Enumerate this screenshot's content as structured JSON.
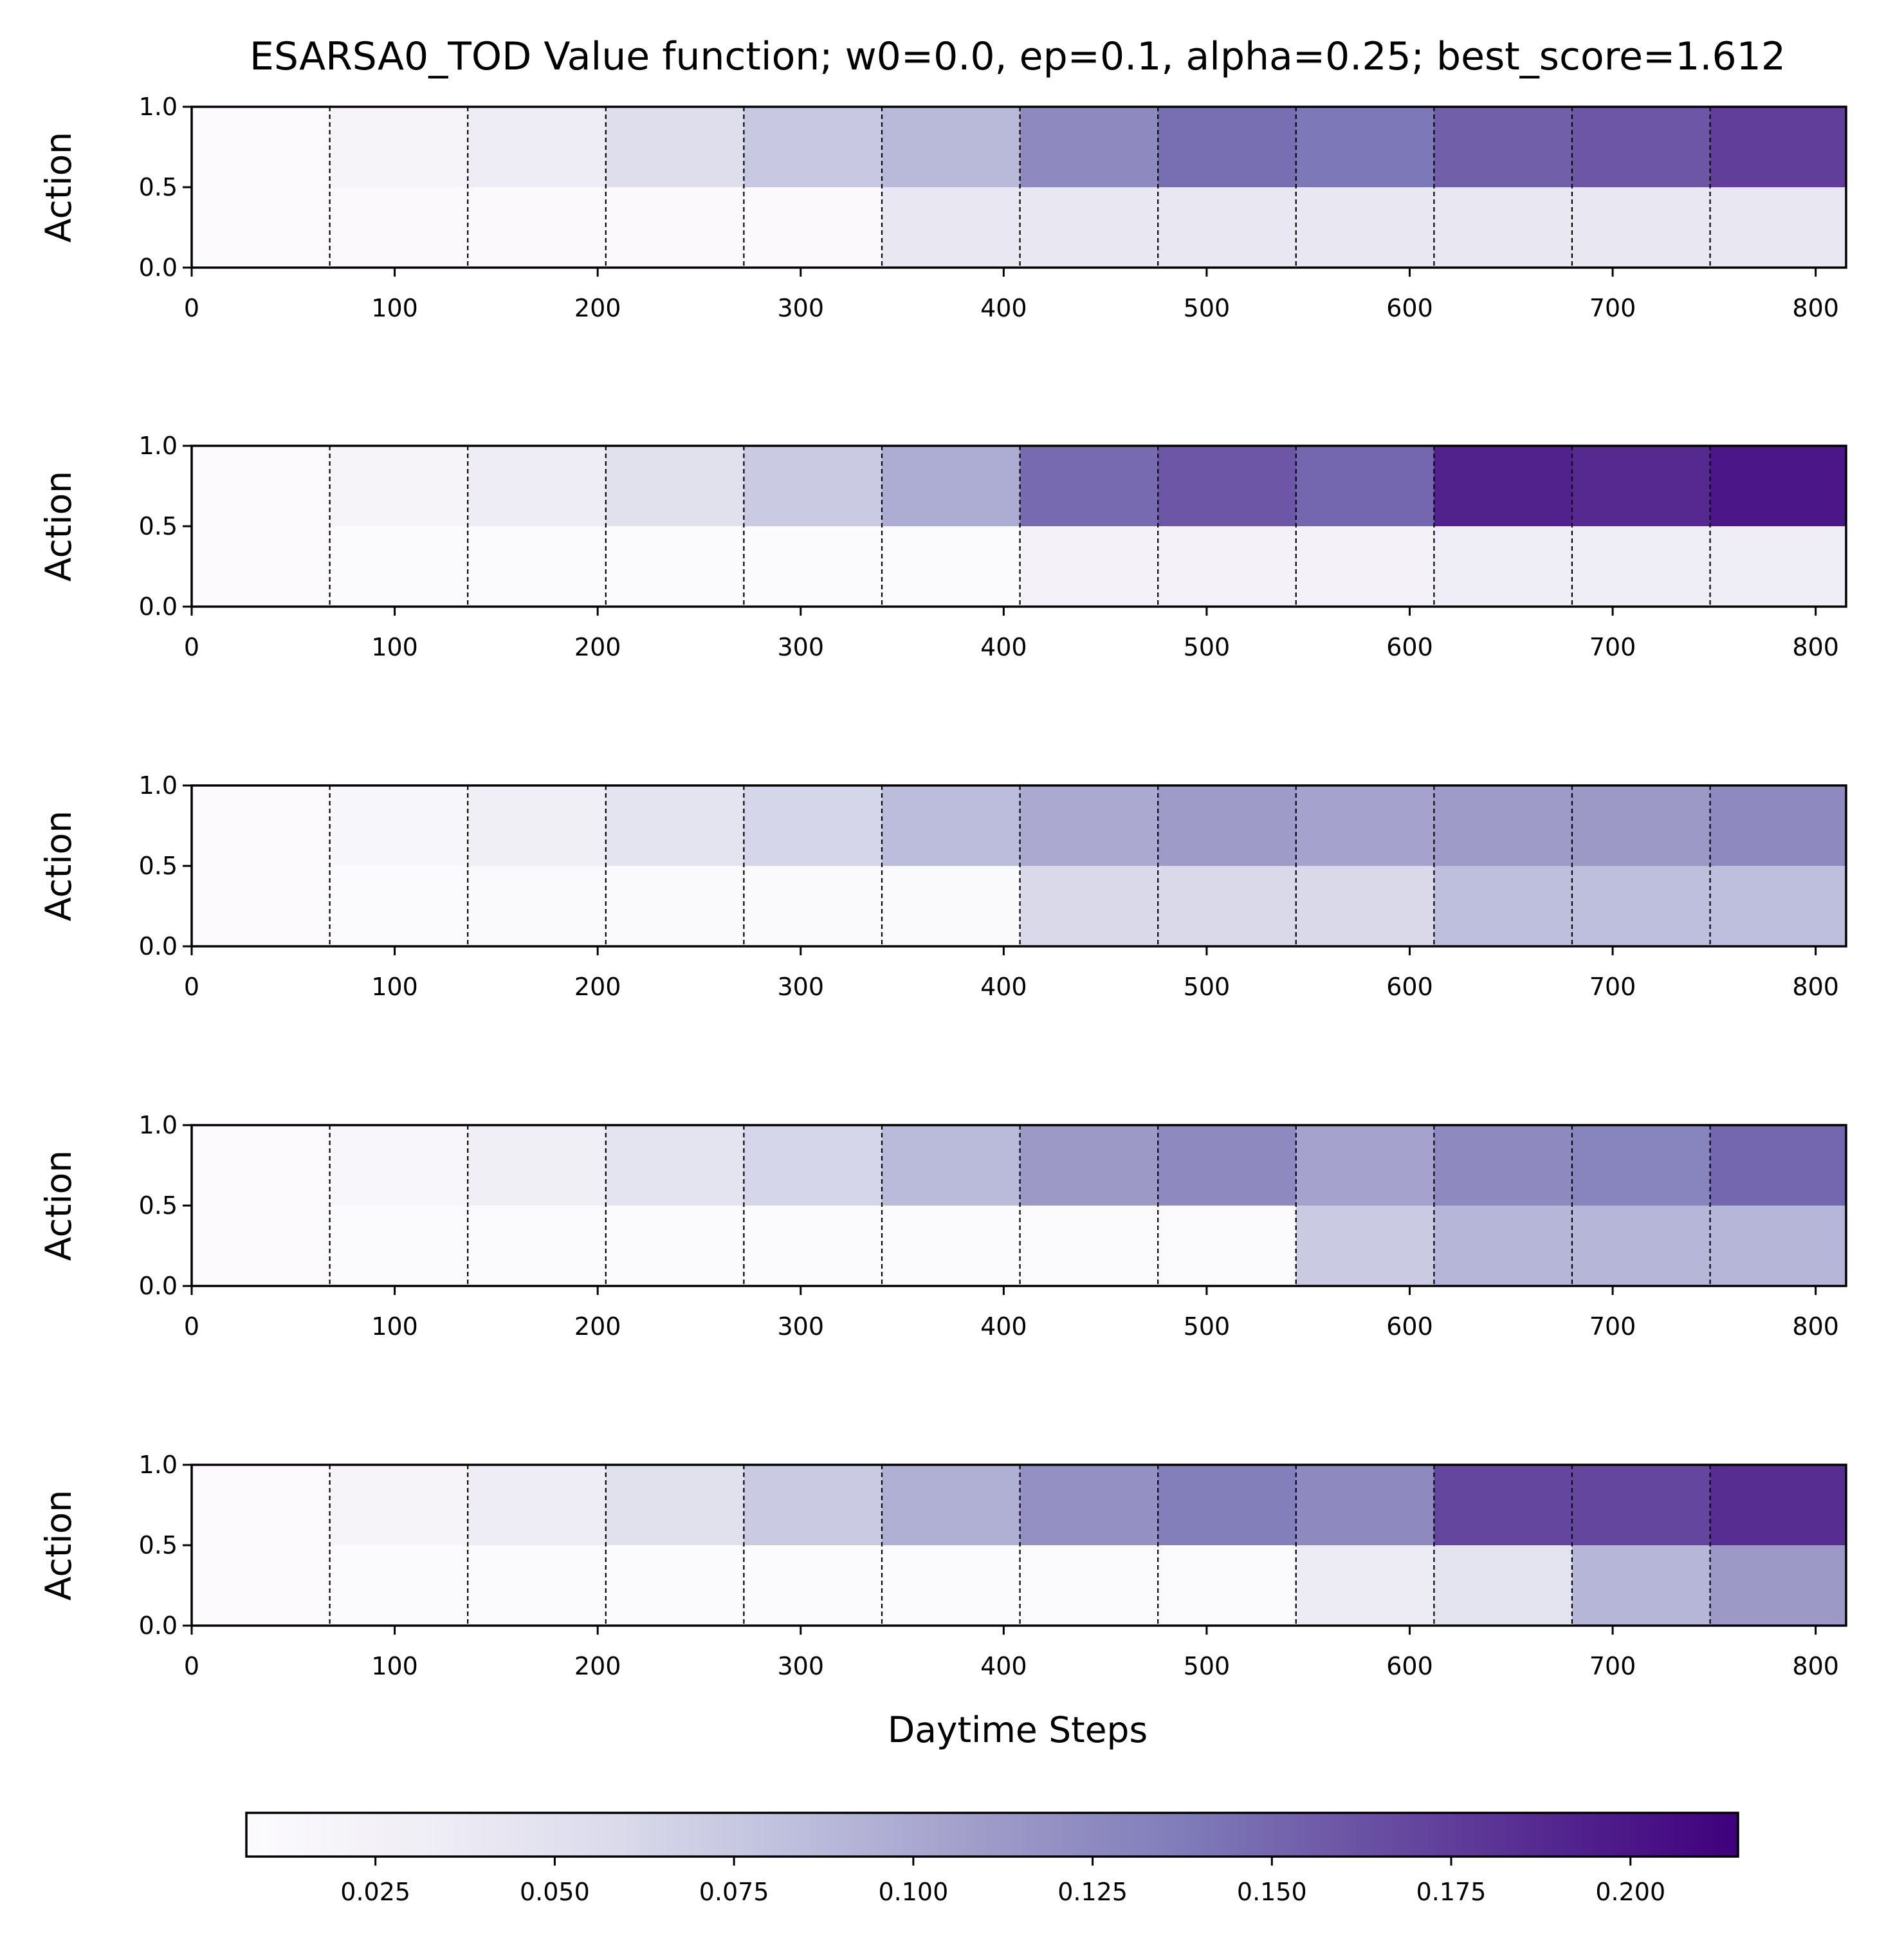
{
  "chart_data": {
    "type": "heatmap",
    "title": "ESARSA0_TOD Value function; w0=0.0, ep=0.1, alpha=0.25; best_score=1.612",
    "xlabel": "Daytime Steps",
    "ylabel": "Action",
    "xlim": [
      0,
      815
    ],
    "ylim": [
      0.0,
      1.0
    ],
    "x_ticks": [
      "0",
      "100",
      "200",
      "300",
      "400",
      "500",
      "600",
      "700",
      "800"
    ],
    "y_ticks": [
      "0.0",
      "0.5",
      "1.0"
    ],
    "segment_boundaries": [
      0,
      68,
      136,
      204,
      272,
      340,
      408,
      476,
      544,
      612,
      680,
      748,
      815
    ],
    "divider_lines_at": [
      68,
      136,
      204,
      272,
      340,
      408,
      476,
      544,
      612,
      680,
      748
    ],
    "colormap": "Purples",
    "colorbar": {
      "min": 0.007,
      "max": 0.215,
      "ticks": [
        "0.025",
        "0.050",
        "0.075",
        "0.100",
        "0.125",
        "0.150",
        "0.175",
        "0.200"
      ],
      "stops": [
        "#fcfbfd",
        "#efedf5",
        "#dadaeb",
        "#bcbddc",
        "#9e9ac8",
        "#807dba",
        "#6a51a3",
        "#54278f",
        "#3f007d"
      ]
    },
    "panels": [
      {
        "action_1": [
          0.008,
          0.02,
          0.034,
          0.053,
          0.075,
          0.088,
          0.125,
          0.146,
          0.14,
          0.155,
          0.16,
          0.175
        ],
        "action_0": [
          0.008,
          0.01,
          0.01,
          0.01,
          0.01,
          0.041,
          0.041,
          0.041,
          0.041,
          0.041,
          0.041,
          0.041
        ]
      },
      {
        "action_1": [
          0.008,
          0.02,
          0.034,
          0.05,
          0.073,
          0.098,
          0.148,
          0.16,
          0.15,
          0.193,
          0.188,
          0.2
        ],
        "action_0": [
          0.008,
          0.009,
          0.009,
          0.009,
          0.009,
          0.009,
          0.023,
          0.023,
          0.023,
          0.033,
          0.033,
          0.033
        ]
      },
      {
        "action_1": [
          0.008,
          0.017,
          0.03,
          0.047,
          0.063,
          0.085,
          0.1,
          0.11,
          0.105,
          0.11,
          0.112,
          0.125
        ],
        "action_0": [
          0.008,
          0.009,
          0.011,
          0.011,
          0.011,
          0.011,
          0.06,
          0.06,
          0.06,
          0.083,
          0.083,
          0.083
        ]
      },
      {
        "action_1": [
          0.008,
          0.016,
          0.03,
          0.047,
          0.063,
          0.087,
          0.112,
          0.125,
          0.105,
          0.125,
          0.13,
          0.15
        ],
        "action_0": [
          0.008,
          0.009,
          0.009,
          0.009,
          0.009,
          0.009,
          0.009,
          0.009,
          0.073,
          0.09,
          0.09,
          0.09
        ]
      },
      {
        "action_1": [
          0.008,
          0.02,
          0.034,
          0.05,
          0.073,
          0.095,
          0.12,
          0.135,
          0.125,
          0.17,
          0.17,
          0.185
        ],
        "action_0": [
          0.008,
          0.009,
          0.009,
          0.009,
          0.009,
          0.009,
          0.009,
          0.009,
          0.035,
          0.047,
          0.09,
          0.112
        ]
      }
    ]
  }
}
